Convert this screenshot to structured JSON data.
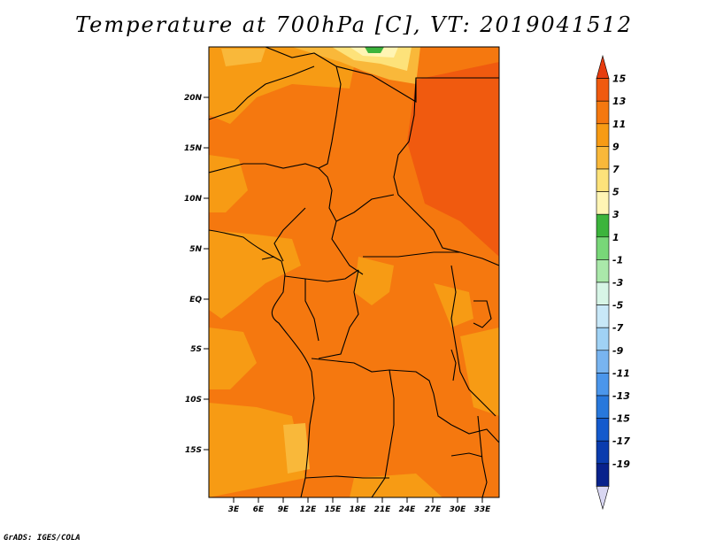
{
  "title": "Temperature at 700hPa [C], VT: 2019041512",
  "credit": "GrADS: IGES/COLA",
  "map": {
    "lat_labels": [
      "20N",
      "15N",
      "10N",
      "5N",
      "EQ",
      "5S",
      "10S",
      "15S"
    ],
    "lon_labels": [
      "3E",
      "6E",
      "9E",
      "12E",
      "15E",
      "18E",
      "21E",
      "24E",
      "27E",
      "30E",
      "33E"
    ]
  },
  "colorbar": {
    "labels": [
      "15",
      "13",
      "11",
      "9",
      "7",
      "5",
      "3",
      "1",
      "-1",
      "-3",
      "-5",
      "-7",
      "-9",
      "-11",
      "-13",
      "-15",
      "-17",
      "-19"
    ],
    "colors": [
      "#e63c0f",
      "#f05a0f",
      "#f5780f",
      "#f79b14",
      "#f9b83a",
      "#fde27a",
      "#fff5b4",
      "#3cb43c",
      "#78d778",
      "#aae8aa",
      "#d7f5e6",
      "#c8e8f8",
      "#a0d2f5",
      "#78b4f0",
      "#4b96eb",
      "#2878dc",
      "#145acd",
      "#0a3cae",
      "#08228c",
      "#d9d7f2"
    ]
  }
}
